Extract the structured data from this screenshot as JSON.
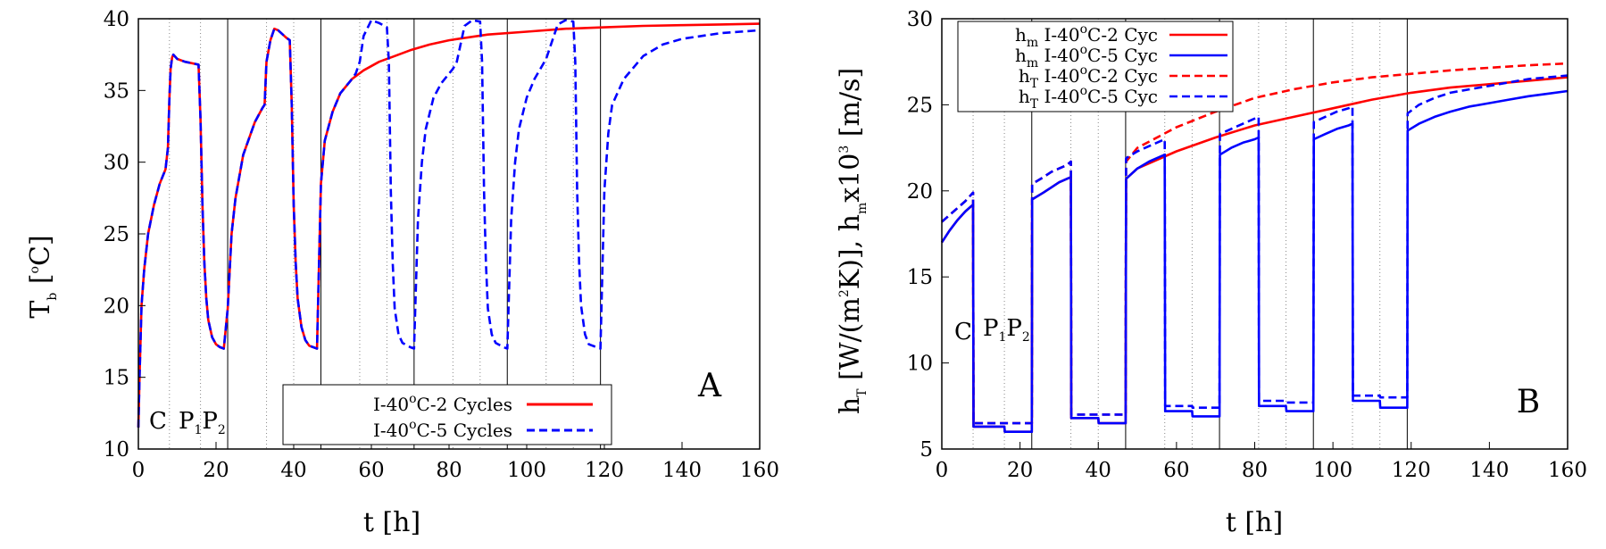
{
  "chart_data": [
    {
      "type": "line",
      "panel_letter": "A",
      "xlabel": "t [h]",
      "ylabel": "T_b [oC]",
      "ylabel_parts": {
        "main": "T",
        "sub": "b",
        "pre": " [",
        "sup": "o",
        "post": "C]"
      },
      "xlim": [
        0,
        160
      ],
      "ylim": [
        10,
        40
      ],
      "xticks": [
        "0",
        "20",
        "40",
        "60",
        "80",
        "100",
        "120",
        "140",
        "160"
      ],
      "yticks": [
        "10",
        "15",
        "20",
        "25",
        "30",
        "35",
        "40"
      ],
      "phase_labels": {
        "c": "C",
        "p1": "P",
        "p1_sub": "1",
        "p2": "P",
        "p2_sub": "2"
      },
      "legend_position": "bottom-right",
      "series": [
        {
          "name": "I-40oC-2 Cycles",
          "label_parts": {
            "pre": "I-40",
            "sup": "o",
            "post": "C-2 Cycles"
          },
          "color": "#ff0000",
          "style": "solid",
          "x": [
            0,
            0.3,
            0.8,
            1.5,
            2.5,
            4,
            5.5,
            7,
            7.6,
            8,
            8.3,
            8.7,
            9,
            10,
            12,
            15.5,
            16,
            16.5,
            17,
            17.5,
            18,
            19,
            20,
            21,
            22,
            23,
            24,
            25,
            27,
            30,
            32,
            32.5,
            33,
            34,
            35,
            36,
            38,
            39,
            39.5,
            40,
            40.5,
            41,
            42,
            43,
            44,
            46,
            47,
            48,
            50,
            52,
            55,
            58,
            62,
            66,
            70,
            75,
            80,
            90,
            100,
            110,
            120,
            130,
            140,
            150,
            160
          ],
          "y": [
            11.5,
            15,
            20,
            22.5,
            25,
            27,
            28.5,
            29.5,
            31,
            34.5,
            36.5,
            37.3,
            37.5,
            37.2,
            37,
            36.8,
            33,
            27,
            23,
            20.5,
            19,
            17.8,
            17.3,
            17.1,
            17,
            19.8,
            25,
            27.5,
            30.5,
            32.8,
            33.8,
            34,
            37,
            38.5,
            39.3,
            39.2,
            38.7,
            38.5,
            34,
            27,
            23,
            20.5,
            18.5,
            17.6,
            17.2,
            17,
            28.5,
            31.5,
            33.5,
            34.8,
            35.8,
            36.4,
            37,
            37.4,
            37.8,
            38.2,
            38.5,
            38.9,
            39.1,
            39.3,
            39.4,
            39.5,
            39.55,
            39.6,
            39.65
          ]
        },
        {
          "name": "I-40oC-5 Cycles",
          "label_parts": {
            "pre": "I-40",
            "sup": "o",
            "post": "C-5 Cycles"
          },
          "color": "#0000ff",
          "style": "dashed",
          "x": [
            0,
            0.3,
            0.8,
            1.5,
            2.5,
            4,
            5.5,
            7,
            7.6,
            8,
            8.3,
            8.7,
            9,
            10,
            12,
            15.5,
            16,
            16.5,
            17,
            17.5,
            18,
            19,
            20,
            21,
            22,
            23,
            24,
            25,
            27,
            30,
            32,
            32.5,
            33,
            34,
            35,
            36,
            38,
            39,
            39.5,
            40,
            40.5,
            41,
            42,
            43,
            44,
            46,
            47,
            48,
            50,
            52,
            55,
            56,
            57,
            58,
            60,
            62,
            64,
            64.5,
            65,
            65.5,
            66,
            67,
            68,
            70,
            71,
            72,
            73,
            74,
            76,
            78,
            81,
            82,
            84,
            86,
            88,
            88.5,
            89,
            89.5,
            90,
            91,
            92,
            94,
            95,
            96,
            97,
            98,
            100,
            102,
            105,
            106,
            108,
            110,
            112,
            112.5,
            113,
            113.5,
            114,
            115,
            116,
            118,
            119,
            120,
            121,
            122,
            125,
            130,
            135,
            140,
            145,
            150,
            155,
            160
          ],
          "y": [
            11.5,
            15,
            20,
            22.5,
            25,
            27,
            28.5,
            29.5,
            31,
            34.5,
            36.5,
            37.3,
            37.5,
            37.2,
            37,
            36.8,
            33,
            27,
            23,
            20.5,
            19,
            17.8,
            17.3,
            17.1,
            17,
            19.8,
            25,
            27.5,
            30.5,
            32.8,
            33.8,
            34,
            37,
            38.5,
            39.3,
            39.2,
            38.7,
            38.5,
            34,
            27,
            23,
            20.5,
            18.5,
            17.6,
            17.2,
            17,
            28.5,
            31.5,
            33.5,
            34.8,
            35.8,
            36.2,
            37,
            38.8,
            39.9,
            39.7,
            39.4,
            37,
            28,
            23,
            19.8,
            18,
            17.4,
            17.1,
            17,
            26,
            30,
            32.3,
            34.5,
            35.5,
            36.5,
            37,
            39.5,
            39.9,
            39.8,
            37,
            28,
            23,
            19.8,
            18,
            17.4,
            17.1,
            17,
            26,
            30,
            32.3,
            34.5,
            35.8,
            37.2,
            38,
            39.6,
            39.9,
            39.8,
            37,
            28,
            23,
            20,
            18,
            17.3,
            17.1,
            17,
            28,
            32,
            34,
            35.8,
            37.4,
            38.2,
            38.6,
            38.8,
            39,
            39.1,
            39.2
          ]
        }
      ]
    },
    {
      "type": "line",
      "panel_letter": "B",
      "xlabel": "t [h]",
      "ylabel": "h_T [W/(m2K)], h_m x10^3 [m/s]",
      "ylabel_parts": {
        "a": "h",
        "a_sub": "T",
        "b": " [W/(m",
        "b_sup": "2",
        "c": "K)], h",
        "c_sub": "m",
        "d": "x10",
        "d_sup": "3",
        "e": " [m/s]"
      },
      "xlim": [
        0,
        160
      ],
      "ylim": [
        5,
        30
      ],
      "xticks": [
        "0",
        "20",
        "40",
        "60",
        "80",
        "100",
        "120",
        "140",
        "160"
      ],
      "yticks": [
        "5",
        "10",
        "15",
        "20",
        "25",
        "30"
      ],
      "phase_labels": {
        "c": "C",
        "p1": "P",
        "p1_sub": "1",
        "p2": "P",
        "p2_sub": "2"
      },
      "legend_position": "top-left",
      "series": [
        {
          "name": "hm I-40oC-2 Cyc",
          "label_parts": {
            "h": "h",
            "sub": "m",
            "pre": " I-40",
            "sup": "o",
            "post": "C-2 Cyc"
          },
          "color": "#ff0000",
          "style": "solid",
          "x": [
            0,
            2,
            4,
            6,
            8,
            8.1,
            16,
            16.1,
            23,
            23.1,
            26,
            28,
            30,
            32,
            33,
            33.1,
            40,
            40.1,
            47,
            47.1,
            50,
            60,
            70,
            80,
            90,
            100,
            110,
            120,
            130,
            140,
            150,
            160
          ],
          "y": [
            17,
            17.7,
            18.3,
            18.8,
            19.2,
            6.3,
            6.3,
            6,
            6,
            19.5,
            19.9,
            20.2,
            20.5,
            20.7,
            20.8,
            6.8,
            6.8,
            6.5,
            6.5,
            20.7,
            21.3,
            22.3,
            23.1,
            23.8,
            24.3,
            24.8,
            25.3,
            25.7,
            26,
            26.2,
            26.4,
            26.6
          ]
        },
        {
          "name": "hm I-40oC-5 Cyc",
          "label_parts": {
            "h": "h",
            "sub": "m",
            "pre": " I-40",
            "sup": "o",
            "post": "C-5 Cyc"
          },
          "color": "#0000ff",
          "style": "solid",
          "x": [
            0,
            2,
            4,
            6,
            8,
            8.1,
            16,
            16.1,
            23,
            23.1,
            26,
            28,
            30,
            32,
            33,
            33.1,
            40,
            40.1,
            47,
            47.1,
            50,
            53,
            56,
            57,
            57.1,
            64,
            64.1,
            71,
            71.1,
            74,
            77,
            80,
            81,
            81.1,
            88,
            88.1,
            95,
            95.1,
            98,
            101,
            104,
            105,
            105.1,
            112,
            112.1,
            119,
            119.1,
            122,
            126,
            130,
            135,
            140,
            145,
            150,
            155,
            160
          ],
          "y": [
            17,
            17.7,
            18.3,
            18.8,
            19.2,
            6.3,
            6.3,
            6,
            6,
            19.5,
            19.9,
            20.2,
            20.5,
            20.7,
            20.8,
            6.8,
            6.8,
            6.5,
            6.5,
            20.7,
            21.3,
            21.7,
            22,
            22.1,
            7.2,
            7.2,
            6.9,
            6.9,
            22.1,
            22.5,
            22.8,
            23,
            23.1,
            7.5,
            7.5,
            7.2,
            7.2,
            23,
            23.3,
            23.6,
            23.8,
            23.9,
            7.8,
            7.8,
            7.4,
            7.4,
            23.5,
            23.9,
            24.3,
            24.6,
            24.9,
            25.1,
            25.3,
            25.5,
            25.65,
            25.8
          ]
        },
        {
          "name": "hT I-40oC-2 Cyc",
          "label_parts": {
            "h": "h",
            "sub": "T",
            "pre": " I-40",
            "sup": "o",
            "post": "C-2 Cyc"
          },
          "color": "#ff0000",
          "style": "dashed",
          "x": [
            0,
            2,
            4,
            6,
            8,
            8.1,
            16,
            16.1,
            23,
            23.1,
            26,
            28,
            30,
            32,
            33,
            33.1,
            40,
            40.1,
            47,
            47.1,
            50,
            60,
            70,
            80,
            90,
            100,
            110,
            120,
            130,
            140,
            150,
            160
          ],
          "y": [
            18.2,
            18.6,
            19,
            19.4,
            19.9,
            6.5,
            6.5,
            6.5,
            6.5,
            20.4,
            20.8,
            21.1,
            21.3,
            21.5,
            21.7,
            7,
            7,
            7,
            7,
            21.7,
            22.5,
            23.7,
            24.6,
            25.4,
            25.9,
            26.3,
            26.6,
            26.8,
            27,
            27.15,
            27.3,
            27.4
          ]
        },
        {
          "name": "hT I-40oC-5 Cyc",
          "label_parts": {
            "h": "h",
            "sub": "T",
            "pre": " I-40",
            "sup": "o",
            "post": "C-5 Cyc"
          },
          "color": "#0000ff",
          "style": "dashed",
          "x": [
            0,
            2,
            4,
            6,
            8,
            8.1,
            16,
            16.1,
            23,
            23.1,
            26,
            28,
            30,
            32,
            33,
            33.1,
            40,
            40.1,
            47,
            47.1,
            50,
            53,
            56,
            57,
            57.1,
            64,
            64.1,
            71,
            71.1,
            74,
            77,
            80,
            81,
            81.1,
            88,
            88.1,
            95,
            95.1,
            98,
            101,
            104,
            105,
            105.1,
            112,
            112.1,
            119,
            119.1,
            122,
            126,
            130,
            135,
            140,
            145,
            150,
            155,
            160
          ],
          "y": [
            18.2,
            18.6,
            19,
            19.4,
            19.9,
            6.5,
            6.5,
            6.5,
            6.5,
            20.4,
            20.8,
            21.1,
            21.3,
            21.5,
            21.7,
            7,
            7,
            7,
            7,
            21.9,
            22.3,
            22.6,
            22.9,
            23,
            7.5,
            7.5,
            7.4,
            7.4,
            23.3,
            23.6,
            23.9,
            24.2,
            24.3,
            7.8,
            7.8,
            7.7,
            7.7,
            24,
            24.3,
            24.6,
            24.8,
            24.9,
            8.1,
            8.1,
            8,
            8,
            24.5,
            25,
            25.4,
            25.7,
            25.9,
            26.1,
            26.3,
            26.5,
            26.6,
            26.7
          ]
        }
      ]
    }
  ]
}
